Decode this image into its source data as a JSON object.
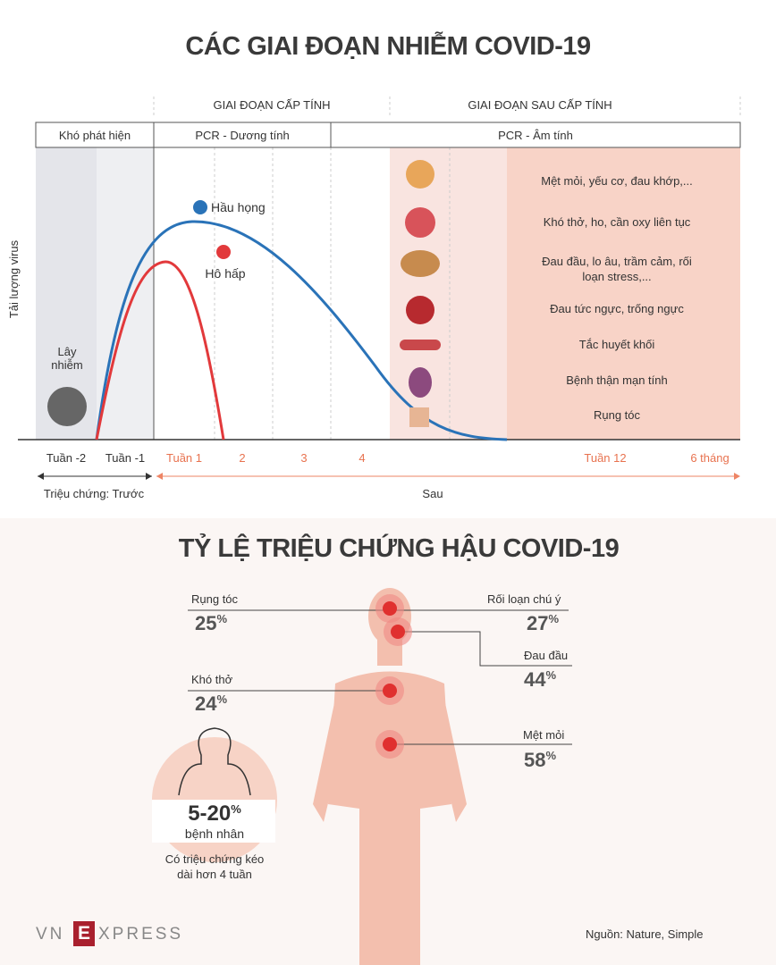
{
  "title": "CÁC GIAI ĐOẠN NHIỄM COVID-19",
  "phases": [
    "GIAI ĐOẠN CẤP TÍNH",
    "GIAI ĐOẠN SAU CẤP TÍNH"
  ],
  "tests": [
    "Khó phát hiện",
    "PCR - Dương tính",
    "PCR - Âm tính"
  ],
  "y_axis_label": "Tải lượng virus",
  "infection_label": "Lây nhiễm",
  "curve_labels": [
    "Hầu họng",
    "Hô hấp"
  ],
  "symptoms": [
    "Mệt mỏi, yếu cơ, đau khớp,...",
    "Khó thở, ho, cần oxy liên tục",
    "Đau đầu, lo âu, trầm cảm, rối loạn stress,...",
    "Đau tức ngực, trống ngực",
    "Tắc huyết khối",
    "Bệnh thận mạn tính",
    "Rụng tóc"
  ],
  "weeks": [
    "Tuần -2",
    "Tuần -1",
    "Tuần 1",
    "2",
    "3",
    "4",
    "Tuần 12",
    "6 tháng"
  ],
  "timeline": [
    "Triệu chứng: Trước",
    "Sau"
  ],
  "stats_title": "TỶ LỆ TRIỆU CHỨNG HẬU COVID-19",
  "stats": [
    {
      "label": "Rụng tóc",
      "value": 25,
      "unit": "%"
    },
    {
      "label": "Rối loạn chú ý",
      "value": 27,
      "unit": "%"
    },
    {
      "label": "Đau đầu",
      "value": 44,
      "unit": "%"
    },
    {
      "label": "Khó thở",
      "value": 24,
      "unit": "%"
    },
    {
      "label": "Mệt mỏi",
      "value": 58,
      "unit": "%"
    }
  ],
  "patients": {
    "range": "5-20",
    "unit": "%",
    "label": "bệnh nhân",
    "note": "Có triệu chứng kéo dài hơn 4 tuần"
  },
  "brand": [
    "VN",
    "E",
    "XPRESS"
  ],
  "source": "Nguồn: Nature, Simple"
}
